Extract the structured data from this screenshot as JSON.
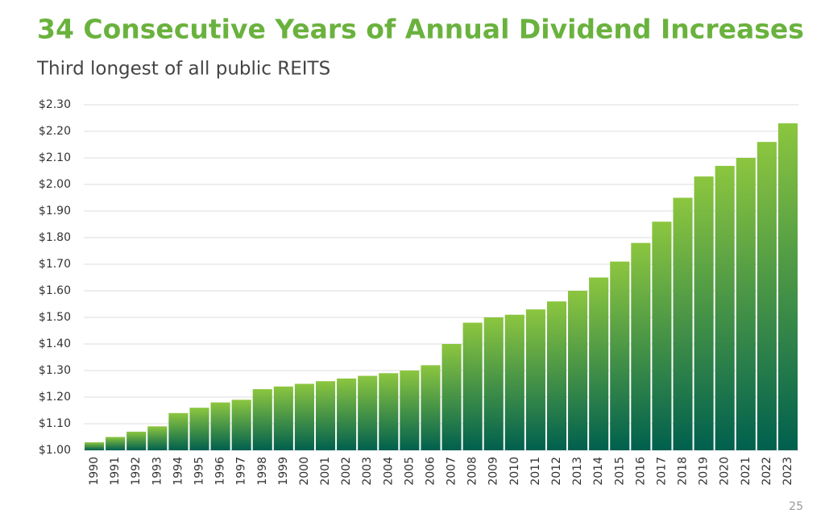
{
  "chart_data": {
    "type": "bar",
    "title": "34 Consecutive Years of Annual Dividend Increases",
    "subtitle": "Third longest of all public REITS",
    "categories": [
      "1990",
      "1991",
      "1992",
      "1993",
      "1994",
      "1995",
      "1996",
      "1997",
      "1998",
      "1999",
      "2000",
      "2001",
      "2002",
      "2003",
      "2004",
      "2005",
      "2006",
      "2007",
      "2008",
      "2009",
      "2010",
      "2011",
      "2012",
      "2013",
      "2014",
      "2015",
      "2016",
      "2017",
      "2018",
      "2019",
      "2020",
      "2021",
      "2022",
      "2023"
    ],
    "values": [
      1.03,
      1.05,
      1.07,
      1.09,
      1.14,
      1.16,
      1.18,
      1.19,
      1.23,
      1.24,
      1.25,
      1.26,
      1.27,
      1.28,
      1.29,
      1.3,
      1.32,
      1.4,
      1.48,
      1.5,
      1.51,
      1.53,
      1.56,
      1.6,
      1.65,
      1.71,
      1.78,
      1.86,
      1.95,
      2.03,
      2.07,
      2.1,
      2.16,
      2.23
    ],
    "colors": [
      "#8cc63f",
      "#00604e"
    ],
    "ylim": [
      1.0,
      2.3
    ],
    "yticks": [
      {
        "value": 1.0,
        "label": "$1.00"
      },
      {
        "value": 1.1,
        "label": "$1.10"
      },
      {
        "value": 1.2,
        "label": "$1.20"
      },
      {
        "value": 1.3,
        "label": "$1.30"
      },
      {
        "value": 1.4,
        "label": "$1.40"
      },
      {
        "value": 1.5,
        "label": "$1.50"
      },
      {
        "value": 1.6,
        "label": "$1.60"
      },
      {
        "value": 1.7,
        "label": "$1.70"
      },
      {
        "value": 1.8,
        "label": "$1.80"
      },
      {
        "value": 1.9,
        "label": "$1.90"
      },
      {
        "value": 2.0,
        "label": "$2.00"
      },
      {
        "value": 2.1,
        "label": "$2.10"
      },
      {
        "value": 2.2,
        "label": "$2.20"
      },
      {
        "value": 2.3,
        "label": "$2.30"
      }
    ],
    "grid": true
  },
  "page_number": "25"
}
